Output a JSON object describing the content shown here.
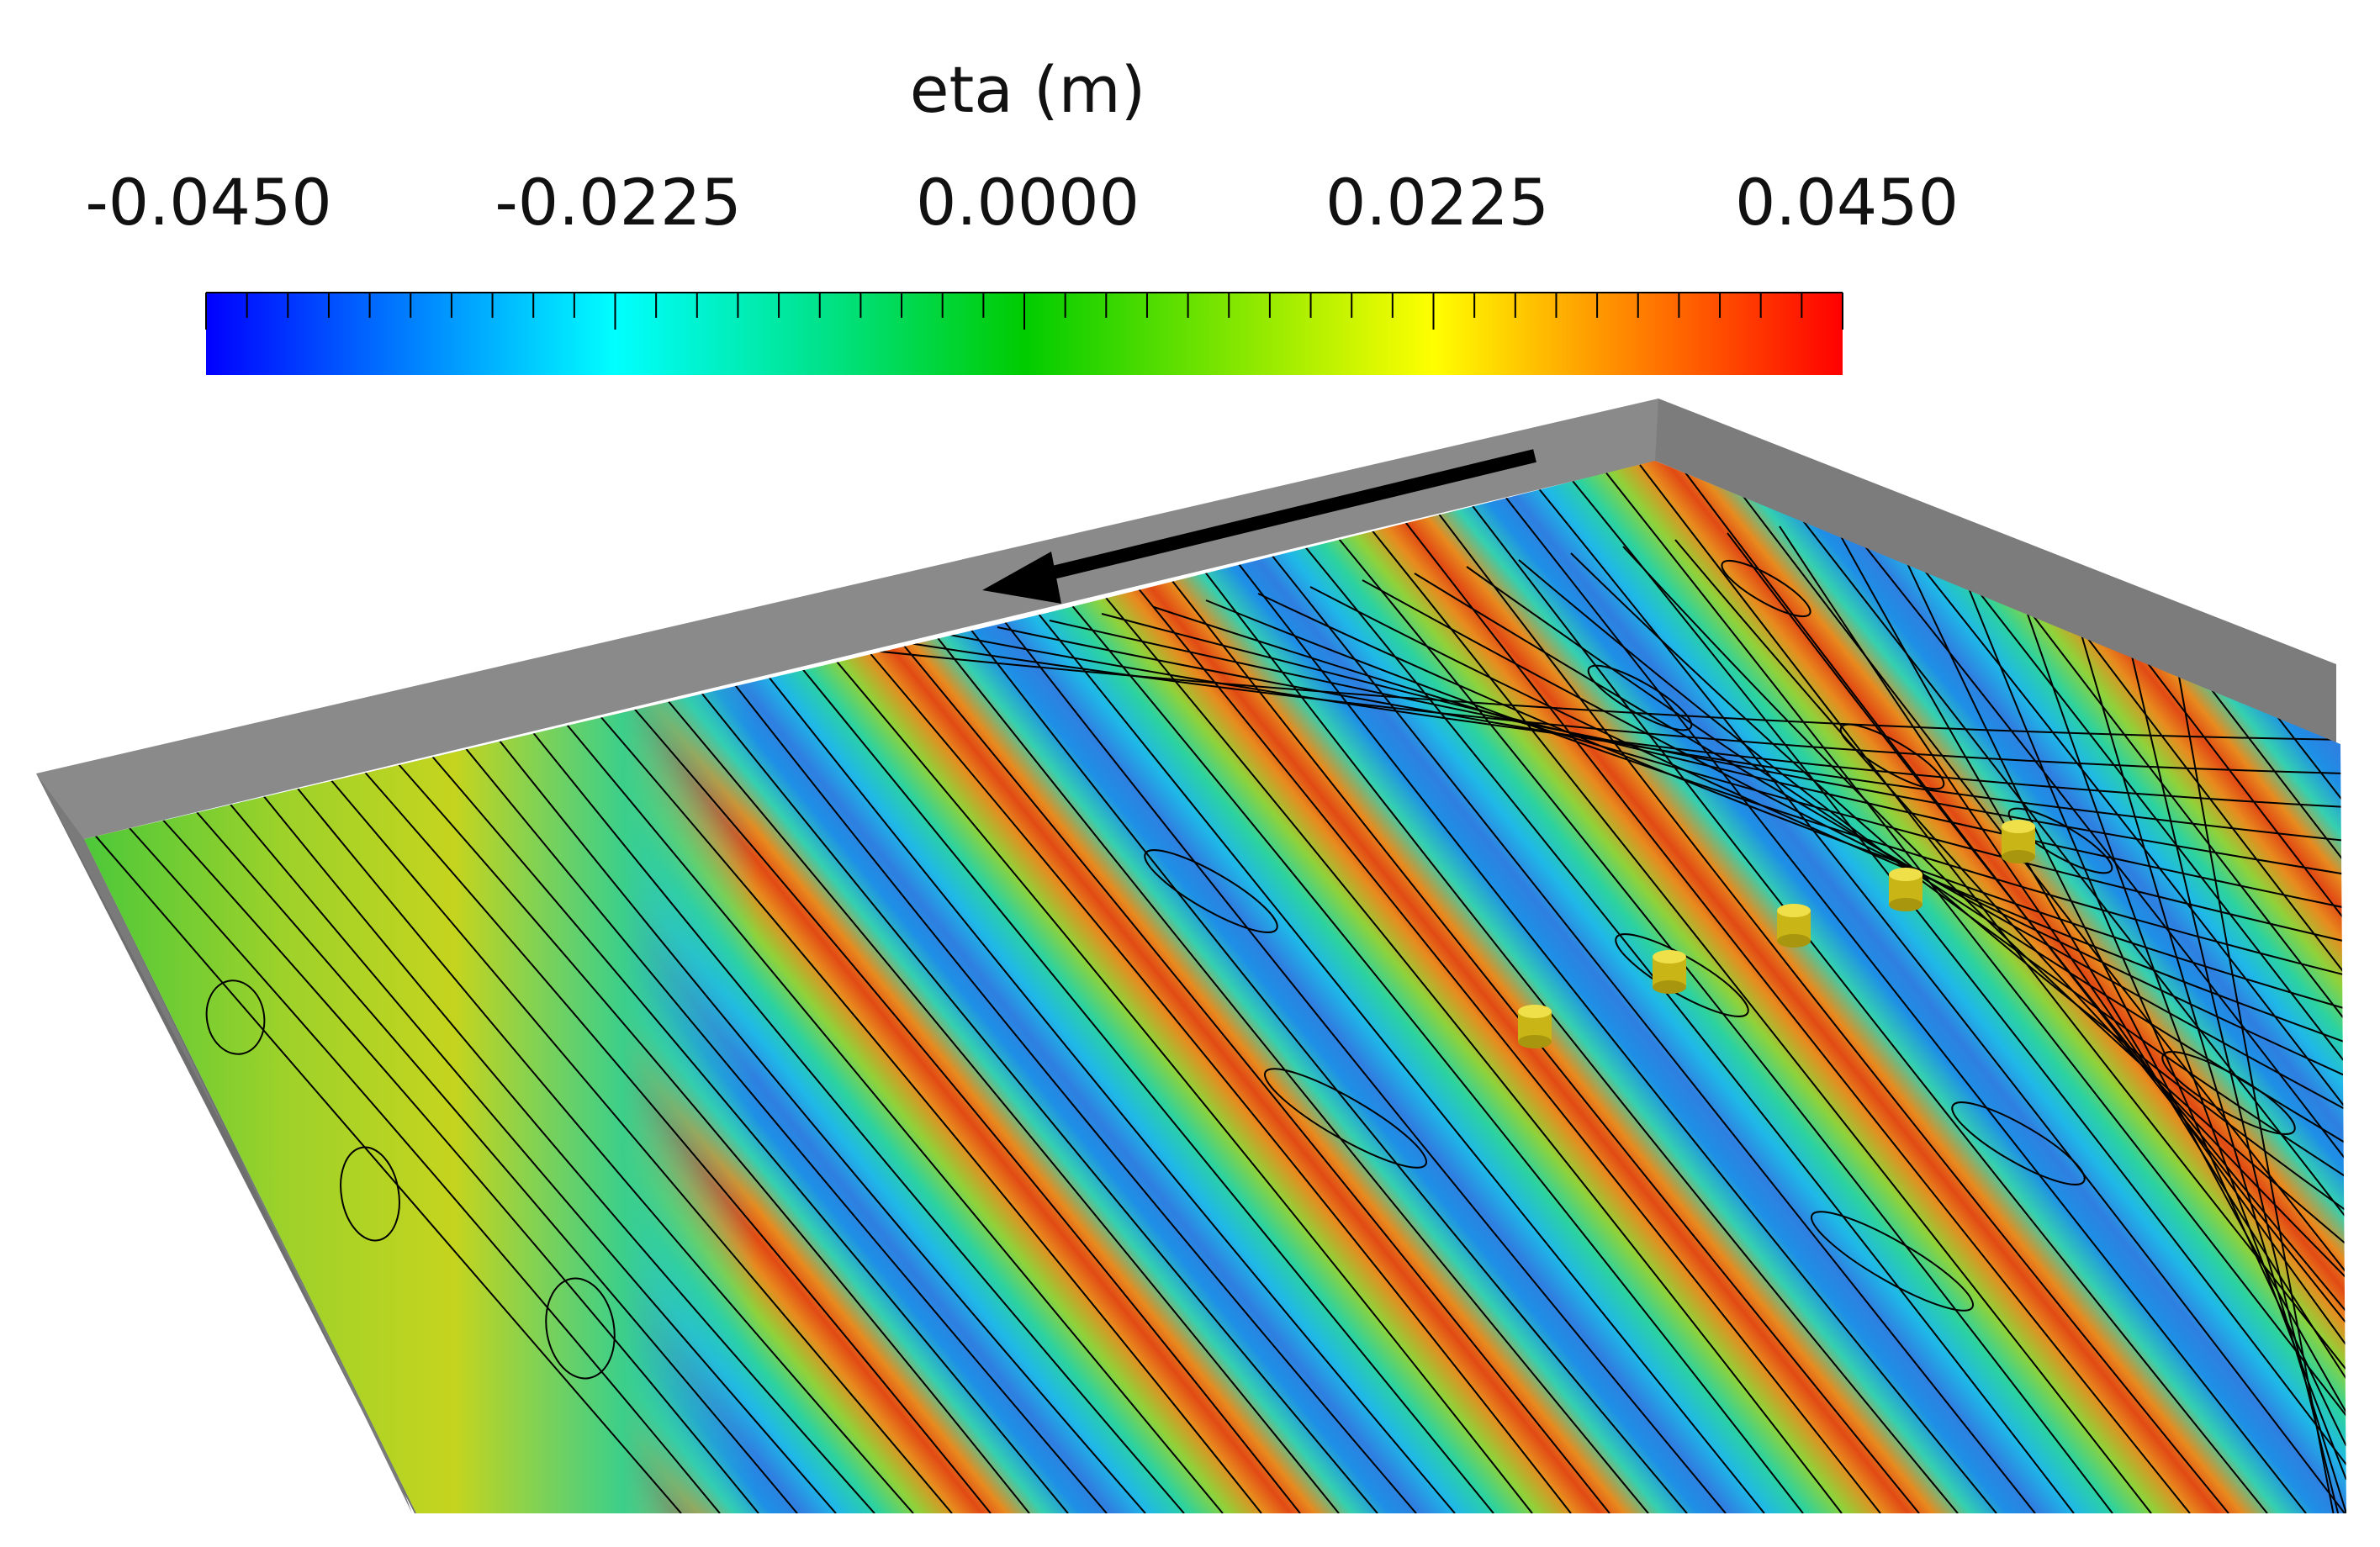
{
  "colorbar": {
    "title": "eta (m)",
    "min": -0.045,
    "max": 0.045,
    "tick_labels": [
      "-0.0450",
      "-0.0225",
      "0.0000",
      "0.0225",
      "0.0450"
    ],
    "colors": [
      "#0000ff",
      "#0080ff",
      "#00ffff",
      "#00e38c",
      "#00cc00",
      "#7fe600",
      "#ffff00",
      "#ff8000",
      "#ff0000"
    ]
  },
  "scene": {
    "wall_color": "#8a8a8a",
    "wall_dark_color": "#6e6e6e",
    "contour_color": "#000000",
    "arrow_color": "#000000",
    "cylinder_color": "#d4c21e",
    "cylinder_count": 5
  }
}
